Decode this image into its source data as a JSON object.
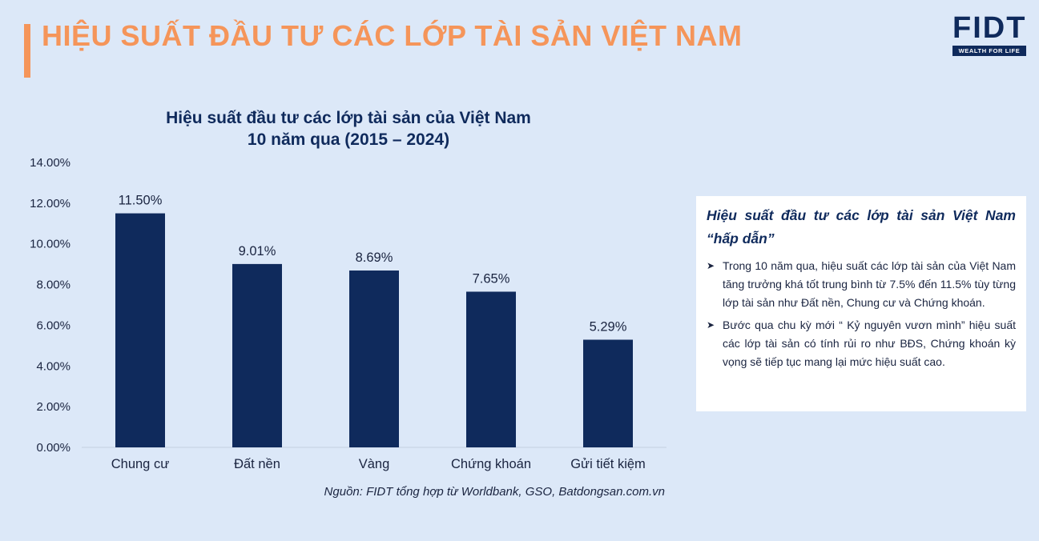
{
  "header": {
    "title": "HIỆU SUẤT ĐẦU TƯ CÁC LỚP TÀI SẢN VIỆT NAM",
    "logo_text": "FIDT",
    "logo_tagline": "WEALTH FOR LIFE"
  },
  "chart_data": {
    "type": "bar",
    "title": "Hiệu suất đầu tư các lớp tài sản của Việt Nam",
    "subtitle": "10 năm qua (2015 – 2024)",
    "categories": [
      "Chung cư",
      "Đất nền",
      "Vàng",
      "Chứng khoán",
      "Gửi tiết kiệm"
    ],
    "values": [
      11.5,
      9.01,
      8.69,
      7.65,
      5.29
    ],
    "value_labels": [
      "11.50%",
      "9.01%",
      "8.69%",
      "7.65%",
      "5.29%"
    ],
    "ylim": [
      0,
      14
    ],
    "yticks": [
      0,
      2,
      4,
      6,
      8,
      10,
      12,
      14
    ],
    "ytick_labels": [
      "0.00%",
      "2.00%",
      "4.00%",
      "6.00%",
      "8.00%",
      "10.00%",
      "12.00%",
      "14.00%"
    ],
    "xlabel": "",
    "ylabel": "",
    "grid": false,
    "bar_color": "#0f2a5c"
  },
  "source": "Nguồn: FIDT tổng hợp từ Worldbank, GSO, Batdongsan.com.vn",
  "panel": {
    "heading": "Hiệu suất đầu tư các lớp tài sản Việt Nam “hấp dẫn”",
    "bullets": [
      "Trong 10 năm qua, hiệu suất các lớp tài sản của Việt Nam tăng trưởng khá tốt trung bình từ 7.5% đến 11.5% tùy từng lớp tài sản như Đất nền, Chung cư và Chứng khoán.",
      "Bước qua chu kỳ mới “ Kỷ nguyên vươn mình” hiệu suất các lớp tài sản có tính rủi ro như BĐS, Chứng khoán kỳ vọng sẽ tiếp tục mang lại mức hiệu suất cao."
    ]
  },
  "colors": {
    "accent": "#f5955a",
    "navy": "#0f2a5c",
    "background": "#dce8f8"
  }
}
